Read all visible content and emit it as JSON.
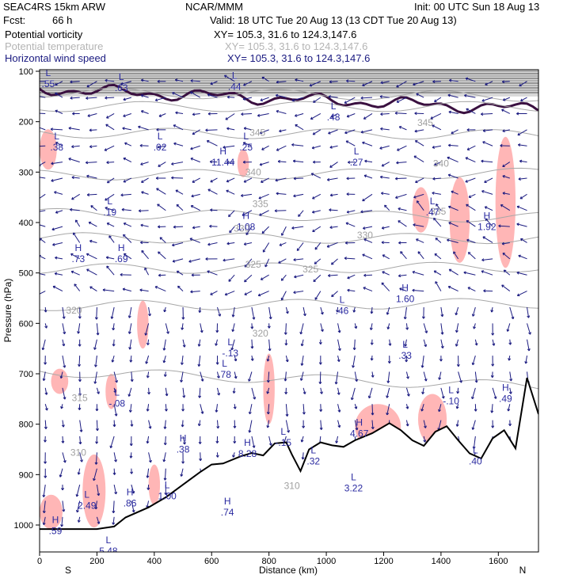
{
  "header": {
    "model": "SEAC4RS 15km ARW",
    "org": "NCAR/MMM",
    "init": "Init: 00 UTC Sun 18 Aug 13",
    "fcst_label": "Fcst:",
    "fcst_value": "66 h",
    "valid": "Valid: 18 UTC Tue 20 Aug 13 (13 CDT Tue 20 Aug 13)",
    "field1": "Potential vorticity",
    "field1_xy": "XY= 105.3, 31.6 to 124.3,147.6",
    "field2": "Potential temperature",
    "field2_xy": "XY= 105.3, 31.6 to 124.3,147.6",
    "field3": "Horizontal wind speed",
    "field3_xy": "XY= 105.3, 31.6 to 124.3,147.6"
  },
  "colors": {
    "pv_fill": "#ffb6b6",
    "terrain": "#000000",
    "wind": "#1a1a80",
    "theta": "#a8a8a8",
    "tropopause": "#3a1040"
  },
  "chart_data": {
    "type": "cross-section",
    "xlabel": "Distance (km)",
    "ylabel": "Pressure (hPa)",
    "xlim": [
      0,
      1740
    ],
    "ylim": [
      1000,
      100
    ],
    "x_ticks": [
      0,
      200,
      400,
      600,
      800,
      1000,
      1200,
      1400,
      1600
    ],
    "y_ticks": [
      100,
      200,
      300,
      400,
      500,
      600,
      700,
      800,
      900,
      1000
    ],
    "end_labels": {
      "left": "S",
      "right": "N"
    },
    "terrain_surface": {
      "x": [
        0,
        100,
        200,
        260,
        300,
        380,
        440,
        500,
        560,
        600,
        640,
        700,
        740,
        780,
        820,
        860,
        880,
        910,
        940,
        980,
        1020,
        1060,
        1100,
        1160,
        1220,
        1260,
        1300,
        1340,
        1380,
        1420,
        1460,
        1500,
        1540,
        1580,
        1620,
        1660,
        1700,
        1740
      ],
      "p": [
        1008,
        1008,
        1008,
        1003,
        985,
        965,
        945,
        920,
        895,
        880,
        878,
        864,
        857,
        862,
        838,
        836,
        860,
        893,
        850,
        836,
        842,
        845,
        832,
        818,
        798,
        812,
        832,
        843,
        815,
        804,
        832,
        858,
        868,
        828,
        812,
        848,
        708,
        780
      ]
    },
    "potential_temperature_contours": [
      {
        "level": 315,
        "p_left": 695,
        "p_right": 725
      },
      {
        "level": 320,
        "p_left": 565,
        "p_right": 560
      },
      {
        "level": 325,
        "p_left": 492,
        "p_right": 488
      },
      {
        "level": 330,
        "p_left": 430,
        "p_right": 432
      },
      {
        "level": 335,
        "p_left": 382,
        "p_right": 390
      },
      {
        "level": 340,
        "p_left": 306,
        "p_right": 302
      },
      {
        "level": 345,
        "p_left": 222,
        "p_right": 226
      },
      {
        "level": 350,
        "p_left": 170,
        "p_right": 170
      },
      {
        "level": 355,
        "p_left": 142,
        "p_right": 150
      }
    ],
    "theta_labels": [
      {
        "text": "310",
        "x": 135,
        "p": 856
      },
      {
        "text": "315",
        "x": 140,
        "p": 748
      },
      {
        "text": "320",
        "x": 120,
        "p": 574
      },
      {
        "text": "320",
        "x": 770,
        "p": 620
      },
      {
        "text": "325",
        "x": 945,
        "p": 493
      },
      {
        "text": "325",
        "x": 745,
        "p": 483
      },
      {
        "text": "330",
        "x": 1135,
        "p": 425
      },
      {
        "text": "330",
        "x": 705,
        "p": 412
      },
      {
        "text": "335",
        "x": 770,
        "p": 363
      },
      {
        "text": "335",
        "x": 1390,
        "p": 378
      },
      {
        "text": "340",
        "x": 745,
        "p": 300
      },
      {
        "text": "340",
        "x": 1400,
        "p": 283
      },
      {
        "text": "345",
        "x": 760,
        "p": 222
      },
      {
        "text": "345",
        "x": 1345,
        "p": 202
      },
      {
        "text": "310",
        "x": 880,
        "p": 922
      }
    ],
    "pv_extrema": [
      {
        "kind": "L",
        "value": ".55",
        "x": 30,
        "p": 128
      },
      {
        "kind": "L",
        "value": ".63",
        "x": 285,
        "p": 136
      },
      {
        "kind": "L",
        "value": ".44",
        "x": 680,
        "p": 134
      },
      {
        "kind": "L",
        "value": ".48",
        "x": 1025,
        "p": 194
      },
      {
        "kind": "L",
        "value": ".38",
        "x": 60,
        "p": 254
      },
      {
        "kind": "L",
        "value": ".02",
        "x": 420,
        "p": 254
      },
      {
        "kind": "L",
        "value": ".25",
        "x": 720,
        "p": 254
      },
      {
        "kind": "H",
        "value": "11.44",
        "x": 640,
        "p": 284
      },
      {
        "kind": "L",
        "value": ".27",
        "x": 1105,
        "p": 284
      },
      {
        "kind": "L",
        "value": ".19",
        "x": 245,
        "p": 383
      },
      {
        "kind": "L",
        "value": ".47",
        "x": 1370,
        "p": 383
      },
      {
        "kind": "H",
        "value": "1.08",
        "x": 720,
        "p": 412
      },
      {
        "kind": "H",
        "value": "1.92",
        "x": 1560,
        "p": 412
      },
      {
        "kind": "H",
        "value": ".73",
        "x": 135,
        "p": 475
      },
      {
        "kind": "H",
        "value": ".69",
        "x": 285,
        "p": 475
      },
      {
        "kind": "H",
        "value": "1.60",
        "x": 1275,
        "p": 555
      },
      {
        "kind": "L",
        "value": ".46",
        "x": 1055,
        "p": 578
      },
      {
        "kind": "L",
        "value": "-.13",
        "x": 665,
        "p": 662
      },
      {
        "kind": "L",
        "value": ".33",
        "x": 1275,
        "p": 667
      },
      {
        "kind": "L",
        "value": ".78",
        "x": 645,
        "p": 705
      },
      {
        "kind": "L",
        "value": "-.08",
        "x": 270,
        "p": 762
      },
      {
        "kind": "L",
        "value": "-.10",
        "x": 1435,
        "p": 757
      },
      {
        "kind": "H",
        "value": ".49",
        "x": 1625,
        "p": 753
      },
      {
        "kind": "H",
        "value": "4.67",
        "x": 1115,
        "p": 822
      },
      {
        "kind": "L",
        "value": "-.15",
        "x": 850,
        "p": 840
      },
      {
        "kind": "H",
        "value": ".38",
        "x": 500,
        "p": 853
      },
      {
        "kind": "H",
        "value": "8.28",
        "x": 725,
        "p": 862
      },
      {
        "kind": "L",
        "value": ".32",
        "x": 955,
        "p": 877
      },
      {
        "kind": "L",
        "value": ".40",
        "x": 1520,
        "p": 877
      },
      {
        "kind": "L",
        "value": "3.22",
        "x": 1095,
        "p": 930
      },
      {
        "kind": "L",
        "value": "1.00",
        "x": 445,
        "p": 946
      },
      {
        "kind": "H",
        "value": ".86",
        "x": 315,
        "p": 960
      },
      {
        "kind": "L",
        "value": "2.49",
        "x": 165,
        "p": 965
      },
      {
        "kind": "H",
        "value": ".74",
        "x": 655,
        "p": 978
      },
      {
        "kind": "H",
        "value": ".59",
        "x": 55,
        "p": 1015
      },
      {
        "kind": "L",
        "value": "5.48",
        "x": 240,
        "p": 1055
      }
    ],
    "pv_high_regions": [
      {
        "x": [
          0,
          60
        ],
        "p": [
          215,
          295
        ]
      },
      {
        "x": [
          690,
          730
        ],
        "p": [
          255,
          310
        ]
      },
      {
        "x": [
          1300,
          1360
        ],
        "p": [
          330,
          420
        ]
      },
      {
        "x": [
          1430,
          1500
        ],
        "p": [
          310,
          480
        ]
      },
      {
        "x": [
          1590,
          1660
        ],
        "p": [
          230,
          490
        ]
      },
      {
        "x": [
          340,
          380
        ],
        "p": [
          555,
          650
        ]
      },
      {
        "x": [
          40,
          100
        ],
        "p": [
          690,
          740
        ]
      },
      {
        "x": [
          230,
          270
        ],
        "p": [
          700,
          770
        ]
      },
      {
        "x": [
          780,
          820
        ],
        "p": [
          660,
          800
        ]
      },
      {
        "x": [
          1320,
          1420
        ],
        "p": [
          740,
          840
        ]
      },
      {
        "x": [
          1100,
          1260
        ],
        "p": [
          760,
          850
        ]
      },
      {
        "x": [
          0,
          80
        ],
        "p": [
          940,
          1008
        ]
      },
      {
        "x": [
          150,
          230
        ],
        "p": [
          860,
          1005
        ]
      },
      {
        "x": [
          380,
          420
        ],
        "p": [
          880,
          960
        ]
      }
    ],
    "wind_vectors_note": "Horizontal wind speed shown as arrow field across the section"
  }
}
